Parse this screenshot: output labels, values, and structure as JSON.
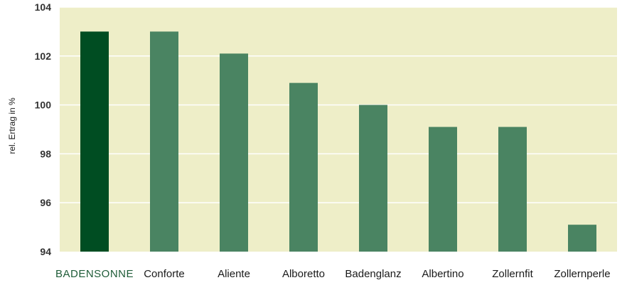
{
  "chart_data": {
    "type": "bar",
    "ylabel": "rel. Ertrag in %",
    "xlabel": "",
    "ylim": [
      94,
      104
    ],
    "yticks": [
      94,
      96,
      98,
      100,
      102,
      104
    ],
    "grid": true,
    "categories": [
      "BADENSONNE",
      "Conforte",
      "Aliente",
      "Alboretto",
      "Badenglanz",
      "Albertino",
      "Zollernfit",
      "Zollernperle"
    ],
    "values": [
      103,
      103,
      102.1,
      100.9,
      100,
      99.1,
      99.1,
      95.1
    ],
    "highlight_index": 0,
    "colors": {
      "background": "#eeeec8",
      "bar": "#4a8462",
      "bar_highlight": "#004d22",
      "grid": "#ffffff",
      "highlight_label": "#1f5c38"
    }
  }
}
